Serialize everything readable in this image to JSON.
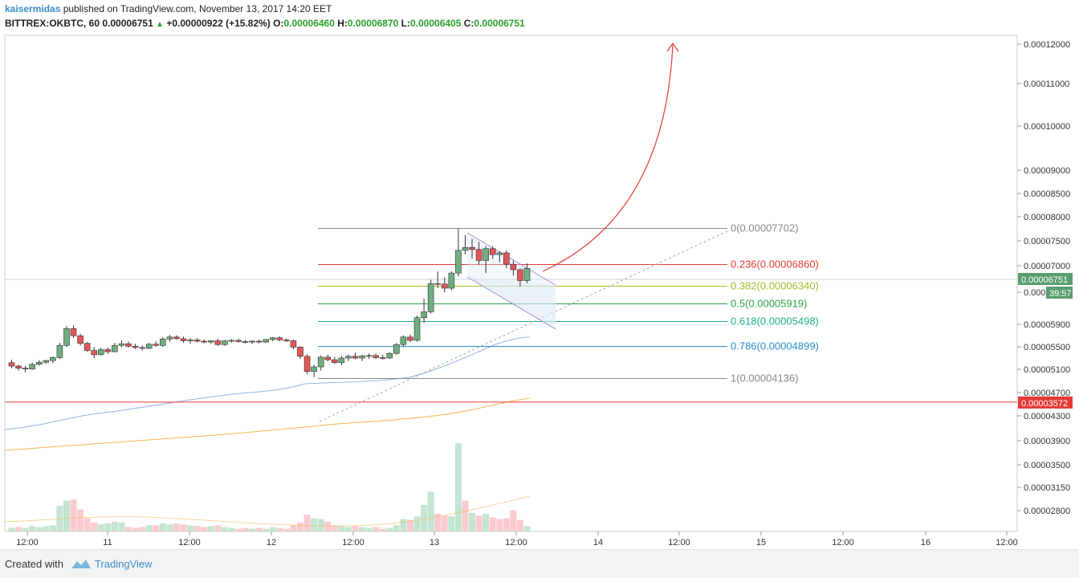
{
  "header": {
    "user": "kaisermidas",
    "published": "published on TradingView.com, November 13, 2017 14:20 EET",
    "symbol": "BITTREX:OKBTC, 60",
    "last": "0.00006751",
    "change": "+0.00000922 (+15.82%)",
    "o_label": "O:",
    "o_value": "0.00006460",
    "h_label": "H:",
    "h_value": "0.00006870",
    "l_label": "L:",
    "l_value": "0.00006405",
    "c_label": "C:",
    "c_value": "0.00006751"
  },
  "footer": {
    "created_with": "Created with",
    "brand": "TradingView"
  },
  "chart_data": {
    "type": "candlestick",
    "price_axis_labels": [
      "0.00012000",
      "0.00011000",
      "0.00010000",
      "0.00009000",
      "0.00008500",
      "0.00008000",
      "0.00007500",
      "0.00007000",
      "0.00006500",
      "0.00005900",
      "0.00005500",
      "0.00005100",
      "0.00004700",
      "0.00004300",
      "0.00003900",
      "0.00003500",
      "0.00003150",
      "0.00002800"
    ],
    "time_axis_labels": [
      "12:00",
      "11",
      "12:00",
      "12",
      "12:00",
      "13",
      "12:00",
      "14",
      "12:00",
      "15",
      "12:00",
      "16",
      "12:00"
    ],
    "current_price_tag": "0.00006751",
    "countdown": "39:57",
    "support_price": 3.572e-05,
    "support_tag": "0.00003572",
    "fib_levels": [
      {
        "label": "0(0.00007702)",
        "price": 7.702e-05,
        "color": "#888888"
      },
      {
        "label": "0.236(0.00006860)",
        "price": 6.86e-05,
        "color": "#e53935"
      },
      {
        "label": "0.382(0.00006340)",
        "price": 6.34e-05,
        "color": "#9fbf2a"
      },
      {
        "label": "0.5(0.00005919)",
        "price": 5.919e-05,
        "color": "#2ea043"
      },
      {
        "label": "0.618(0.00005498)",
        "price": 5.498e-05,
        "color": "#1fae8c"
      },
      {
        "label": "0.786(0.00004899)",
        "price": 4.899e-05,
        "color": "#2a8fc8"
      },
      {
        "label": "1(0.00004136)",
        "price": 4.136e-05,
        "color": "#888888"
      }
    ],
    "candles": [
      [
        4.51e-05,
        4.58e-05,
        4.38e-05,
        4.43e-05
      ],
      [
        4.43e-05,
        4.46e-05,
        4.32e-05,
        4.38e-05
      ],
      [
        4.38e-05,
        4.43e-05,
        4.28e-05,
        4.36e-05
      ],
      [
        4.36e-05,
        4.51e-05,
        4.34e-05,
        4.47e-05
      ],
      [
        4.47e-05,
        4.57e-05,
        4.44e-05,
        4.52e-05
      ],
      [
        4.52e-05,
        4.58e-05,
        4.48e-05,
        4.56e-05
      ],
      [
        4.56e-05,
        4.66e-05,
        4.5e-05,
        4.63e-05
      ],
      [
        4.63e-05,
        4.98e-05,
        4.6e-05,
        4.92e-05
      ],
      [
        4.92e-05,
        5.38e-05,
        4.88e-05,
        5.32e-05
      ],
      [
        5.32e-05,
        5.4e-05,
        5.1e-05,
        5.15e-05
      ],
      [
        5.15e-05,
        5.2e-05,
        4.92e-05,
        4.97e-05
      ],
      [
        4.97e-05,
        5e-05,
        4.77e-05,
        4.8e-05
      ],
      [
        4.8e-05,
        4.88e-05,
        4.62e-05,
        4.7e-05
      ],
      [
        4.7e-05,
        4.86e-05,
        4.68e-05,
        4.82e-05
      ],
      [
        4.82e-05,
        4.87e-05,
        4.72e-05,
        4.77e-05
      ],
      [
        4.77e-05,
        4.98e-05,
        4.76e-05,
        4.92e-05
      ],
      [
        4.92e-05,
        5.04e-05,
        4.88e-05,
        4.96e-05
      ],
      [
        4.96e-05,
        5.01e-05,
        4.87e-05,
        4.9e-05
      ],
      [
        4.9e-05,
        4.96e-05,
        4.83e-05,
        4.87e-05
      ],
      [
        4.87e-05,
        4.92e-05,
        4.8e-05,
        4.85e-05
      ],
      [
        4.85e-05,
        4.98e-05,
        4.83e-05,
        4.95e-05
      ],
      [
        4.95e-05,
        5.02e-05,
        4.89e-05,
        4.92e-05
      ],
      [
        4.92e-05,
        5.12e-05,
        4.88e-05,
        5.07e-05
      ],
      [
        5.07e-05,
        5.17e-05,
        5.01e-05,
        5.12e-05
      ],
      [
        5.12e-05,
        5.16e-05,
        5.05e-05,
        5.08e-05
      ],
      [
        5.08e-05,
        5.13e-05,
        4.98e-05,
        5.03e-05
      ],
      [
        5.03e-05,
        5.1e-05,
        4.96e-05,
        5.05e-05
      ],
      [
        5.05e-05,
        5.09e-05,
        4.99e-05,
        5.02e-05
      ],
      [
        5.02e-05,
        5.06e-05,
        4.97e-05,
        5e-05
      ],
      [
        5e-05,
        5.04e-05,
        4.96e-05,
        5.03e-05
      ],
      [
        5.03e-05,
        5.08e-05,
        4.91e-05,
        4.94e-05
      ],
      [
        4.94e-05,
        5.05e-05,
        4.91e-05,
        5.03e-05
      ],
      [
        5.03e-05,
        5.07e-05,
        4.99e-05,
        5.04e-05
      ],
      [
        5.04e-05,
        5.08e-05,
        4.99e-05,
        5.01e-05
      ],
      [
        5.01e-05,
        5.05e-05,
        4.97e-05,
        5e-05
      ],
      [
        5e-05,
        5.04e-05,
        4.96e-05,
        5.02e-05
      ],
      [
        5.02e-05,
        5.06e-05,
        4.97e-05,
        5e-05
      ],
      [
        5e-05,
        5.07e-05,
        4.98e-05,
        5.06e-05
      ],
      [
        5.06e-05,
        5.12e-05,
        5.02e-05,
        5.1e-05
      ],
      [
        5.1e-05,
        5.14e-05,
        5.02e-05,
        5.05e-05
      ],
      [
        5.05e-05,
        5.09e-05,
        5e-05,
        5.03e-05
      ],
      [
        5.03e-05,
        5.06e-05,
        4.83e-05,
        4.88e-05
      ],
      [
        4.88e-05,
        4.9e-05,
        4.6e-05,
        4.66e-05
      ],
      [
        4.66e-05,
        4.71e-05,
        4.24e-05,
        4.3e-05
      ],
      [
        4.3e-05,
        4.46e-05,
        4.17e-05,
        4.41e-05
      ],
      [
        4.41e-05,
        4.68e-05,
        4.32e-05,
        4.64e-05
      ],
      [
        4.64e-05,
        4.7e-05,
        4.54e-05,
        4.58e-05
      ],
      [
        4.58e-05,
        4.65e-05,
        4.48e-05,
        4.51e-05
      ],
      [
        4.51e-05,
        4.67e-05,
        4.45e-05,
        4.62e-05
      ],
      [
        4.62e-05,
        4.7e-05,
        4.55e-05,
        4.66e-05
      ],
      [
        4.66e-05,
        4.75e-05,
        4.59e-05,
        4.62e-05
      ],
      [
        4.62e-05,
        4.7e-05,
        4.55e-05,
        4.67e-05
      ],
      [
        4.67e-05,
        4.72e-05,
        4.6e-05,
        4.68e-05
      ],
      [
        4.68e-05,
        4.73e-05,
        4.6e-05,
        4.63e-05
      ],
      [
        4.63e-05,
        4.7e-05,
        4.58e-05,
        4.62e-05
      ],
      [
        4.62e-05,
        4.76e-05,
        4.6e-05,
        4.73e-05
      ],
      [
        4.73e-05,
        4.98e-05,
        4.7e-05,
        4.94e-05
      ],
      [
        4.94e-05,
        5.16e-05,
        4.9e-05,
        5.12e-05
      ],
      [
        5.12e-05,
        5.18e-05,
        5e-05,
        5.04e-05
      ],
      [
        5.04e-05,
        5.63e-05,
        5.01e-05,
        5.58e-05
      ],
      [
        5.58e-05,
        6.03e-05,
        5.46e-05,
        5.72e-05
      ],
      [
        5.72e-05,
        6.48e-05,
        5.68e-05,
        6.39e-05
      ],
      [
        6.39e-05,
        6.68e-05,
        6.28e-05,
        6.38e-05
      ],
      [
        6.38e-05,
        6.54e-05,
        6.18e-05,
        6.28e-05
      ],
      [
        6.28e-05,
        6.68e-05,
        6.23e-05,
        6.64e-05
      ],
      [
        6.64e-05,
        7.7e-05,
        6.56e-05,
        7.18e-05
      ],
      [
        7.18e-05,
        7.54e-05,
        7.08e-05,
        7.25e-05
      ],
      [
        7.25e-05,
        7.46e-05,
        6.98e-05,
        7.2e-05
      ],
      [
        7.2e-05,
        7.38e-05,
        6.84e-05,
        6.94e-05
      ],
      [
        6.94e-05,
        7.28e-05,
        6.64e-05,
        7.22e-05
      ],
      [
        7.22e-05,
        7.28e-05,
        6.98e-05,
        7.08e-05
      ],
      [
        7.08e-05,
        7.16e-05,
        6.9e-05,
        7.12e-05
      ],
      [
        7.12e-05,
        7.18e-05,
        6.76e-05,
        6.85e-05
      ],
      [
        6.85e-05,
        6.94e-05,
        6.58e-05,
        6.72e-05
      ],
      [
        6.72e-05,
        6.75e-05,
        6.32e-05,
        6.46e-05
      ],
      [
        6.46e-05,
        6.87e-05,
        6.4e-05,
        6.75e-05
      ]
    ],
    "volumes": [
      [
        8,
        1
      ],
      [
        10,
        0
      ],
      [
        8,
        1
      ],
      [
        12,
        1
      ],
      [
        10,
        1
      ],
      [
        12,
        1
      ],
      [
        14,
        1
      ],
      [
        58,
        1
      ],
      [
        70,
        1
      ],
      [
        72,
        0
      ],
      [
        50,
        0
      ],
      [
        30,
        0
      ],
      [
        20,
        0
      ],
      [
        16,
        1
      ],
      [
        18,
        1
      ],
      [
        22,
        1
      ],
      [
        20,
        1
      ],
      [
        10,
        0
      ],
      [
        8,
        0
      ],
      [
        10,
        0
      ],
      [
        14,
        1
      ],
      [
        14,
        0
      ],
      [
        18,
        1
      ],
      [
        16,
        1
      ],
      [
        18,
        0
      ],
      [
        16,
        0
      ],
      [
        14,
        1
      ],
      [
        12,
        0
      ],
      [
        10,
        0
      ],
      [
        12,
        1
      ],
      [
        14,
        0
      ],
      [
        10,
        1
      ],
      [
        8,
        1
      ],
      [
        6,
        0
      ],
      [
        8,
        0
      ],
      [
        6,
        1
      ],
      [
        8,
        0
      ],
      [
        6,
        1
      ],
      [
        10,
        1
      ],
      [
        8,
        0
      ],
      [
        6,
        0
      ],
      [
        14,
        0
      ],
      [
        20,
        0
      ],
      [
        38,
        0
      ],
      [
        30,
        1
      ],
      [
        28,
        1
      ],
      [
        22,
        0
      ],
      [
        14,
        0
      ],
      [
        12,
        1
      ],
      [
        10,
        1
      ],
      [
        12,
        0
      ],
      [
        10,
        1
      ],
      [
        8,
        1
      ],
      [
        10,
        0
      ],
      [
        6,
        0
      ],
      [
        8,
        1
      ],
      [
        14,
        1
      ],
      [
        28,
        1
      ],
      [
        26,
        0
      ],
      [
        34,
        1
      ],
      [
        60,
        1
      ],
      [
        90,
        1
      ],
      [
        40,
        0
      ],
      [
        36,
        0
      ],
      [
        34,
        1
      ],
      [
        200,
        1
      ],
      [
        70,
        0
      ],
      [
        42,
        1
      ],
      [
        36,
        0
      ],
      [
        40,
        1
      ],
      [
        32,
        0
      ],
      [
        28,
        0
      ],
      [
        30,
        0
      ],
      [
        48,
        0
      ],
      [
        26,
        0
      ],
      [
        12,
        1
      ]
    ]
  }
}
